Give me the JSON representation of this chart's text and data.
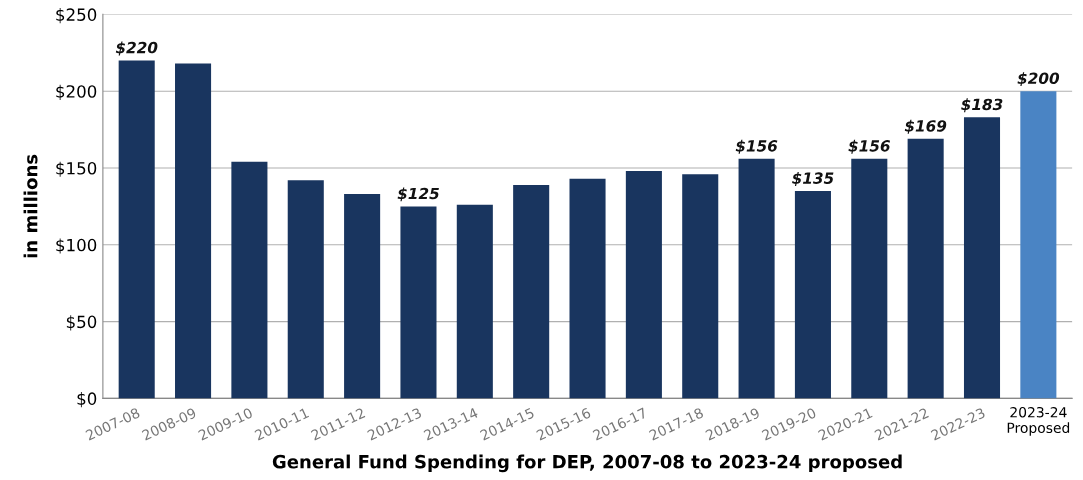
{
  "chart_data": {
    "type": "bar",
    "xlabel": "General Fund Spending for DEP, 2007-08 to 2023-24 proposed",
    "ylabel": "in millions",
    "categories": [
      "2007-08",
      "2008-09",
      "2009-10",
      "2010-11",
      "2011-12",
      "2012-13",
      "2013-14",
      "2014-15",
      "2015-16",
      "2016-17",
      "2017-18",
      "2018-19",
      "2019-20",
      "2020-21",
      "2021-22",
      "2022-23",
      "2023-24\nProposed"
    ],
    "values": [
      220,
      218,
      154,
      142,
      133,
      125,
      126,
      139,
      143,
      148,
      146,
      156,
      135,
      156,
      169,
      183,
      200
    ],
    "colors": [
      "#19355f",
      "#19355f",
      "#19355f",
      "#19355f",
      "#19355f",
      "#19355f",
      "#19355f",
      "#19355f",
      "#19355f",
      "#19355f",
      "#19355f",
      "#19355f",
      "#19355f",
      "#19355f",
      "#19355f",
      "#19355f",
      "#4a84c4"
    ],
    "value_labels": [
      "$220",
      null,
      null,
      null,
      null,
      "$125",
      null,
      null,
      null,
      null,
      null,
      "$156",
      "$135",
      "$156",
      "$169",
      "$183",
      "$200"
    ],
    "ylim": [
      0,
      250
    ],
    "yticks": [
      {
        "value": 0,
        "label": "$0"
      },
      {
        "value": 50,
        "label": "$50"
      },
      {
        "value": 100,
        "label": "$100"
      },
      {
        "value": 150,
        "label": "$150"
      },
      {
        "value": 200,
        "label": "$200"
      },
      {
        "value": 250,
        "label": "$250"
      }
    ],
    "grid": "y"
  }
}
